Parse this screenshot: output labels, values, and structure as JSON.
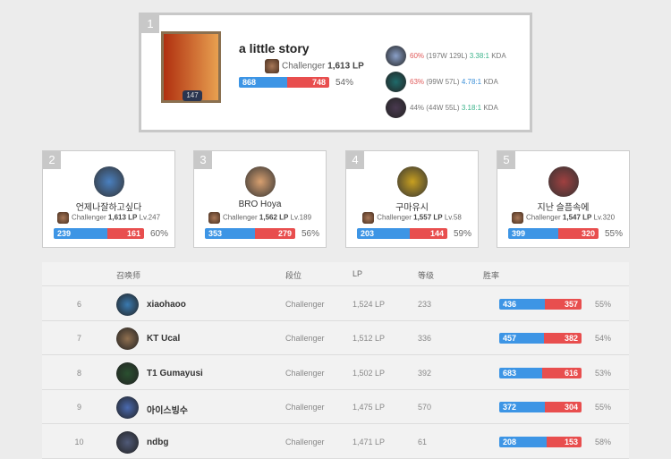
{
  "top": {
    "rank": "1",
    "name": "a little story",
    "level": "147",
    "tier": "Challenger",
    "lp": "1,613 LP",
    "wins": 868,
    "losses": 748,
    "winrate": "54%",
    "champions": [
      {
        "winrate": "60%",
        "record": "(197W 129L)",
        "kda": "3.38:1",
        "kda_suffix": "KDA",
        "wr_color": "#e05a5a",
        "kda_color": "#3bb38a",
        "color": "#8aa0c8"
      },
      {
        "winrate": "63%",
        "record": "(99W 57L)",
        "kda": "4.78:1",
        "kda_suffix": "KDA",
        "wr_color": "#e05a5a",
        "kda_color": "#3b8fd8",
        "color": "#1f6a6a"
      },
      {
        "winrate": "44%",
        "record": "(44W 55L)",
        "kda": "3.18:1",
        "kda_suffix": "KDA",
        "wr_color": "#777777",
        "kda_color": "#3bb38a",
        "color": "#4a3a50"
      }
    ]
  },
  "cards": [
    {
      "rank": "2",
      "name": "언제나잘하고싶다",
      "tier": "Challenger",
      "lp": "1,613 LP",
      "level": "Lv.247",
      "wins": 239,
      "losses": 161,
      "winrate": "60%",
      "color": "#4a80c0"
    },
    {
      "rank": "3",
      "name": "BRO Hoya",
      "tier": "Challenger",
      "lp": "1,562 LP",
      "level": "Lv.189",
      "wins": 353,
      "losses": 279,
      "winrate": "56%",
      "color": "#d8a070"
    },
    {
      "rank": "4",
      "name": "구마유시",
      "tier": "Challenger",
      "lp": "1,557 LP",
      "level": "Lv.58",
      "wins": 203,
      "losses": 144,
      "winrate": "59%",
      "color": "#c8a020"
    },
    {
      "rank": "5",
      "name": "지난 슬픔속에",
      "tier": "Challenger",
      "lp": "1,547 LP",
      "level": "Lv.320",
      "wins": 399,
      "losses": 320,
      "winrate": "55%",
      "color": "#a04040"
    }
  ],
  "table": {
    "headers": {
      "summoner": "召唤师",
      "tier": "段位",
      "lp": "LP",
      "level": "等级",
      "winrate": "胜率"
    },
    "rows": [
      {
        "rank": "6",
        "name": "xiaohaoo",
        "tier": "Challenger",
        "lp": "1,524 LP",
        "level": "233",
        "wins": 436,
        "losses": 357,
        "winrate": "55%",
        "color": "#3a7ab0"
      },
      {
        "rank": "7",
        "name": "KT Ucal",
        "tier": "Challenger",
        "lp": "1,512 LP",
        "level": "336",
        "wins": 457,
        "losses": 382,
        "winrate": "54%",
        "color": "#907050"
      },
      {
        "rank": "8",
        "name": "T1 Gumayusi",
        "tier": "Challenger",
        "lp": "1,502 LP",
        "level": "392",
        "wins": 683,
        "losses": 616,
        "winrate": "53%",
        "color": "#2a5030"
      },
      {
        "rank": "9",
        "name": "아이스빙수",
        "tier": "Challenger",
        "lp": "1,475 LP",
        "level": "570",
        "wins": 372,
        "losses": 304,
        "winrate": "55%",
        "color": "#4a6ab0"
      },
      {
        "rank": "10",
        "name": "ndbg",
        "tier": "Challenger",
        "lp": "1,471 LP",
        "level": "61",
        "wins": 208,
        "losses": 153,
        "winrate": "58%",
        "color": "#505a78"
      }
    ]
  }
}
